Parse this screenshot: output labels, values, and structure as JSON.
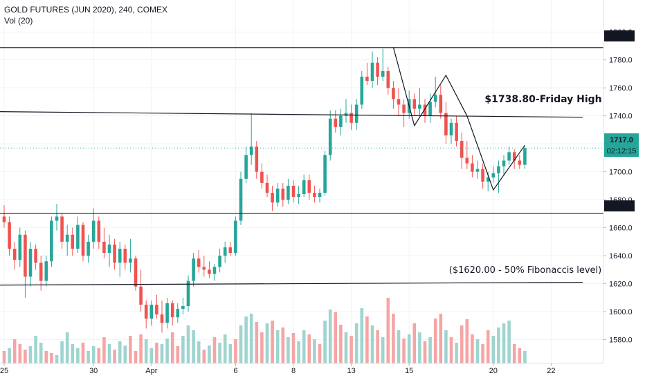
{
  "header": {
    "symbol_line": "GOLD FUTURES (JUN 2020), 240, COMEX",
    "volume_line": "Vol (20)"
  },
  "colors": {
    "up": "#26a69a",
    "down": "#ef5350",
    "vol_up": "#9fd4cf",
    "vol_down": "#f5a5a5",
    "axis_label_bg": "#131722",
    "current_price_bg": "#26a69a"
  },
  "chart_data": {
    "type": "candlestick",
    "title": "GOLD FUTURES (JUN 2020), 240, COMEX",
    "indicator": "Vol (20)",
    "ylim": [
      1563,
      1808
    ],
    "y_ticks": [
      1580.0,
      1600.0,
      1620.0,
      1640.0,
      1660.0,
      1680.0,
      1700.0,
      1720.0,
      1740.0,
      1760.0,
      1780.0,
      1800.0
    ],
    "hidden_ticks": [
      1720.0
    ],
    "x_tick_labels": [
      {
        "label": "25",
        "bar": 0
      },
      {
        "label": "30",
        "bar": 17
      },
      {
        "label": "Apr",
        "bar": 28
      },
      {
        "label": "6",
        "bar": 44
      },
      {
        "label": "8",
        "bar": 55
      },
      {
        "label": "13",
        "bar": 66
      },
      {
        "label": "15",
        "bar": 77
      },
      {
        "label": "20",
        "bar": 93
      },
      {
        "label": "22",
        "bar": 104
      }
    ],
    "candles": [
      [
        1668,
        1676,
        1660,
        1664
      ],
      [
        1664,
        1668,
        1640,
        1645
      ],
      [
        1645,
        1650,
        1630,
        1637
      ],
      [
        1637,
        1660,
        1632,
        1655
      ],
      [
        1655,
        1658,
        1610,
        1625
      ],
      [
        1625,
        1650,
        1618,
        1645
      ],
      [
        1645,
        1648,
        1630,
        1635
      ],
      [
        1635,
        1640,
        1615,
        1622
      ],
      [
        1622,
        1640,
        1618,
        1636
      ],
      [
        1636,
        1668,
        1632,
        1665
      ],
      [
        1665,
        1677,
        1658,
        1668
      ],
      [
        1668,
        1670,
        1645,
        1650
      ],
      [
        1650,
        1662,
        1640,
        1655
      ],
      [
        1655,
        1660,
        1640,
        1645
      ],
      [
        1645,
        1668,
        1642,
        1662
      ],
      [
        1662,
        1664,
        1636,
        1640
      ],
      [
        1640,
        1655,
        1635,
        1650
      ],
      [
        1650,
        1674,
        1645,
        1665
      ],
      [
        1665,
        1668,
        1645,
        1650
      ],
      [
        1650,
        1660,
        1638,
        1642
      ],
      [
        1642,
        1655,
        1632,
        1648
      ],
      [
        1648,
        1652,
        1630,
        1635
      ],
      [
        1635,
        1650,
        1625,
        1645
      ],
      [
        1645,
        1648,
        1630,
        1635
      ],
      [
        1635,
        1652,
        1628,
        1638
      ],
      [
        1638,
        1640,
        1615,
        1618
      ],
      [
        1618,
        1630,
        1600,
        1605
      ],
      [
        1605,
        1608,
        1588,
        1595
      ],
      [
        1595,
        1608,
        1590,
        1605
      ],
      [
        1605,
        1612,
        1595,
        1598
      ],
      [
        1598,
        1608,
        1585,
        1592
      ],
      [
        1592,
        1610,
        1588,
        1606
      ],
      [
        1606,
        1608,
        1590,
        1596
      ],
      [
        1596,
        1606,
        1592,
        1602
      ],
      [
        1602,
        1610,
        1598,
        1604
      ],
      [
        1604,
        1626,
        1600,
        1622
      ],
      [
        1622,
        1642,
        1618,
        1638
      ],
      [
        1638,
        1644,
        1628,
        1632
      ],
      [
        1632,
        1640,
        1625,
        1630
      ],
      [
        1630,
        1636,
        1624,
        1627
      ],
      [
        1627,
        1634,
        1622,
        1632
      ],
      [
        1632,
        1645,
        1628,
        1640
      ],
      [
        1640,
        1650,
        1635,
        1646
      ],
      [
        1646,
        1650,
        1640,
        1642
      ],
      [
        1642,
        1668,
        1640,
        1665
      ],
      [
        1665,
        1700,
        1662,
        1695
      ],
      [
        1695,
        1718,
        1692,
        1712
      ],
      [
        1712,
        1742,
        1705,
        1718
      ],
      [
        1718,
        1722,
        1695,
        1700
      ],
      [
        1700,
        1706,
        1688,
        1692
      ],
      [
        1692,
        1698,
        1682,
        1685
      ],
      [
        1685,
        1690,
        1672,
        1678
      ],
      [
        1678,
        1692,
        1675,
        1688
      ],
      [
        1688,
        1692,
        1675,
        1680
      ],
      [
        1680,
        1695,
        1677,
        1690
      ],
      [
        1690,
        1694,
        1678,
        1682
      ],
      [
        1682,
        1690,
        1677,
        1684
      ],
      [
        1684,
        1698,
        1682,
        1694
      ],
      [
        1694,
        1698,
        1680,
        1685
      ],
      [
        1685,
        1690,
        1678,
        1682
      ],
      [
        1682,
        1688,
        1678,
        1685
      ],
      [
        1685,
        1715,
        1683,
        1712
      ],
      [
        1712,
        1744,
        1708,
        1738
      ],
      [
        1738,
        1744,
        1728,
        1732
      ],
      [
        1732,
        1745,
        1726,
        1740
      ],
      [
        1740,
        1752,
        1735,
        1742
      ],
      [
        1742,
        1748,
        1730,
        1735
      ],
      [
        1735,
        1752,
        1730,
        1748
      ],
      [
        1748,
        1772,
        1745,
        1768
      ],
      [
        1768,
        1778,
        1762,
        1765
      ],
      [
        1765,
        1786,
        1760,
        1778
      ],
      [
        1778,
        1782,
        1762,
        1768
      ],
      [
        1768,
        1788,
        1765,
        1772
      ],
      [
        1772,
        1775,
        1755,
        1760
      ],
      [
        1760,
        1765,
        1745,
        1752
      ],
      [
        1752,
        1760,
        1740,
        1748
      ],
      [
        1748,
        1752,
        1732,
        1742
      ],
      [
        1742,
        1758,
        1738,
        1752
      ],
      [
        1752,
        1756,
        1740,
        1745
      ],
      [
        1745,
        1760,
        1740,
        1748
      ],
      [
        1748,
        1752,
        1735,
        1740
      ],
      [
        1740,
        1756,
        1735,
        1750
      ],
      [
        1750,
        1768,
        1746,
        1755
      ],
      [
        1755,
        1762,
        1738,
        1742
      ],
      [
        1742,
        1750,
        1720,
        1726
      ],
      [
        1726,
        1738,
        1720,
        1735
      ],
      [
        1735,
        1740,
        1718,
        1722
      ],
      [
        1722,
        1728,
        1702,
        1710
      ],
      [
        1710,
        1722,
        1702,
        1706
      ],
      [
        1706,
        1712,
        1696,
        1700
      ],
      [
        1700,
        1708,
        1695,
        1702
      ],
      [
        1702,
        1706,
        1688,
        1693
      ],
      [
        1693,
        1700,
        1686,
        1696
      ],
      [
        1696,
        1704,
        1692,
        1699
      ],
      [
        1699,
        1708,
        1685,
        1704
      ],
      [
        1704,
        1712,
        1698,
        1708
      ],
      [
        1708,
        1718,
        1705,
        1714
      ],
      [
        1714,
        1716,
        1702,
        1708
      ],
      [
        1708,
        1712,
        1702,
        1705
      ],
      [
        1705,
        1718,
        1702,
        1717
      ]
    ],
    "volumes": [
      [
        18,
        "down"
      ],
      [
        22,
        "up"
      ],
      [
        35,
        "down"
      ],
      [
        28,
        "down"
      ],
      [
        20,
        "down"
      ],
      [
        25,
        "up"
      ],
      [
        40,
        "up"
      ],
      [
        30,
        "up"
      ],
      [
        18,
        "down"
      ],
      [
        15,
        "down"
      ],
      [
        12,
        "up"
      ],
      [
        32,
        "up"
      ],
      [
        45,
        "up"
      ],
      [
        28,
        "up"
      ],
      [
        22,
        "up"
      ],
      [
        30,
        "down"
      ],
      [
        18,
        "up"
      ],
      [
        25,
        "up"
      ],
      [
        22,
        "down"
      ],
      [
        38,
        "down"
      ],
      [
        28,
        "up"
      ],
      [
        20,
        "down"
      ],
      [
        32,
        "up"
      ],
      [
        26,
        "up"
      ],
      [
        40,
        "down"
      ],
      [
        18,
        "down"
      ],
      [
        42,
        "down"
      ],
      [
        35,
        "up"
      ],
      [
        22,
        "up"
      ],
      [
        30,
        "down"
      ],
      [
        28,
        "up"
      ],
      [
        36,
        "up"
      ],
      [
        45,
        "down"
      ],
      [
        25,
        "down"
      ],
      [
        40,
        "up"
      ],
      [
        55,
        "up"
      ],
      [
        48,
        "up"
      ],
      [
        32,
        "up"
      ],
      [
        20,
        "down"
      ],
      [
        26,
        "up"
      ],
      [
        38,
        "down"
      ],
      [
        30,
        "up"
      ],
      [
        42,
        "up"
      ],
      [
        28,
        "up"
      ],
      [
        35,
        "down"
      ],
      [
        55,
        "up"
      ],
      [
        68,
        "up"
      ],
      [
        72,
        "up"
      ],
      [
        60,
        "down"
      ],
      [
        45,
        "down"
      ],
      [
        58,
        "up"
      ],
      [
        62,
        "down"
      ],
      [
        48,
        "up"
      ],
      [
        52,
        "down"
      ],
      [
        38,
        "up"
      ],
      [
        44,
        "down"
      ],
      [
        32,
        "up"
      ],
      [
        48,
        "up"
      ],
      [
        42,
        "down"
      ],
      [
        35,
        "up"
      ],
      [
        28,
        "down"
      ],
      [
        62,
        "up"
      ],
      [
        78,
        "up"
      ],
      [
        74,
        "down"
      ],
      [
        56,
        "down"
      ],
      [
        45,
        "up"
      ],
      [
        40,
        "down"
      ],
      [
        58,
        "up"
      ],
      [
        80,
        "up"
      ],
      [
        68,
        "down"
      ],
      [
        55,
        "up"
      ],
      [
        48,
        "down"
      ],
      [
        38,
        "up"
      ],
      [
        95,
        "down"
      ],
      [
        72,
        "down"
      ],
      [
        48,
        "up"
      ],
      [
        36,
        "down"
      ],
      [
        42,
        "up"
      ],
      [
        58,
        "down"
      ],
      [
        45,
        "up"
      ],
      [
        32,
        "down"
      ],
      [
        38,
        "up"
      ],
      [
        65,
        "down"
      ],
      [
        72,
        "down"
      ],
      [
        48,
        "up"
      ],
      [
        38,
        "down"
      ],
      [
        30,
        "up"
      ],
      [
        55,
        "down"
      ],
      [
        64,
        "down"
      ],
      [
        42,
        "down"
      ],
      [
        35,
        "up"
      ],
      [
        28,
        "down"
      ],
      [
        48,
        "down"
      ],
      [
        40,
        "up"
      ],
      [
        52,
        "up"
      ],
      [
        58,
        "up"
      ],
      [
        62,
        "up"
      ],
      [
        28,
        "down"
      ],
      [
        22,
        "down"
      ],
      [
        18,
        "up"
      ]
    ],
    "horizontal_lines": [
      {
        "id": "h1788",
        "price": 1788.8,
        "label": "1788.8"
      },
      {
        "id": "h1670",
        "price": 1670.4,
        "label": "1670.4"
      }
    ],
    "trend_lines": [
      {
        "id": "friday-high-line",
        "from": [
          -1,
          1743
        ],
        "to": [
          110,
          1739
        ]
      },
      {
        "id": "fib-line",
        "from": [
          -1,
          1619
        ],
        "to": [
          110,
          1621
        ]
      }
    ],
    "pattern_lines": [
      [
        74,
        1789
      ],
      [
        78,
        1733
      ],
      [
        84,
        1769
      ],
      [
        88,
        1740
      ],
      [
        93,
        1687
      ],
      [
        99,
        1719
      ]
    ],
    "current_price": {
      "price": 1717.0,
      "label": "1717.0",
      "countdown": "02:12:15"
    },
    "annotations": [
      {
        "id": "friday-high",
        "text": "$1738.80-Friday High"
      },
      {
        "id": "fibonacci",
        "text": "($1620.00 - 50% Fibonaccis level)"
      }
    ]
  }
}
